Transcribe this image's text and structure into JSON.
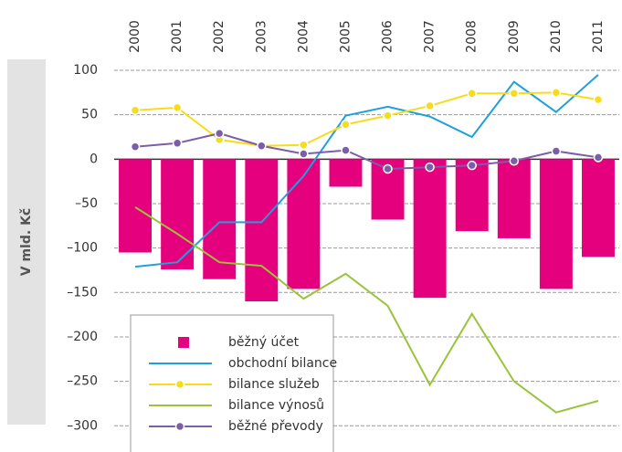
{
  "chart_data": {
    "type": "bar-line",
    "y_label": "V mld. Kč",
    "categories": [
      "2000",
      "2001",
      "2002",
      "2003",
      "2004",
      "2005",
      "2006",
      "2007",
      "2008",
      "2009",
      "2010",
      "2011"
    ],
    "series": [
      {
        "name": "běžný účet",
        "type": "bar",
        "color": "#e5007e",
        "values": [
          -105,
          -124,
          -135,
          -160,
          -146,
          -31,
          -68,
          -156,
          -81,
          -89,
          -146,
          -110
        ]
      },
      {
        "name": "obchodní bilance",
        "type": "line",
        "color": "#1fa0dc",
        "values": [
          -121,
          -116,
          -71,
          -71,
          -19,
          49,
          59,
          48,
          25,
          87,
          53,
          95
        ]
      },
      {
        "name": "bilance služeb",
        "type": "line",
        "marker": true,
        "color": "#f7dc1a",
        "values": [
          55,
          58,
          22,
          15,
          16,
          39,
          49,
          60,
          74,
          74,
          75,
          67
        ]
      },
      {
        "name": "bilance výnosů",
        "type": "line",
        "color": "#9ac33a",
        "values": [
          -54,
          -84,
          -116,
          -120,
          -157,
          -129,
          -165,
          -254,
          -174,
          -250,
          -285,
          -272
        ]
      },
      {
        "name": "běžné převody",
        "type": "line",
        "marker": true,
        "color": "#7b5ea7",
        "values": [
          14,
          18,
          29,
          15,
          6,
          10,
          -11,
          -9,
          -7,
          -2,
          9,
          2
        ]
      }
    ],
    "ylim": [
      -310,
      100
    ],
    "yticks": [
      100,
      50,
      0,
      {
        "value": -50,
        "label": "–50"
      },
      {
        "value": -100,
        "label": "–100"
      },
      {
        "value": -150,
        "label": "–150"
      },
      {
        "value": -200,
        "label": "–200"
      },
      {
        "value": -250,
        "label": "–250"
      },
      {
        "value": -300,
        "label": "–300"
      }
    ],
    "grid": true,
    "legend": "lower left"
  }
}
